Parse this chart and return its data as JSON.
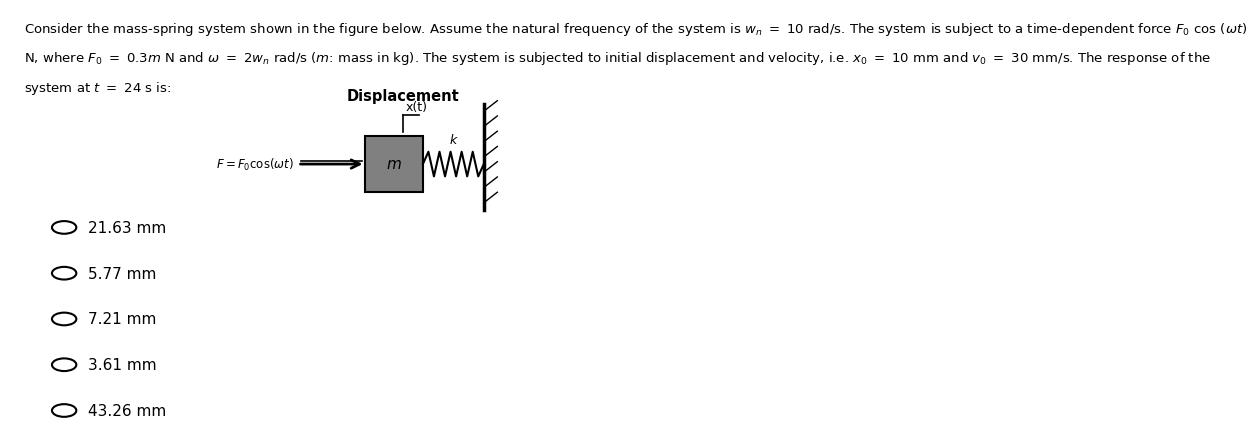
{
  "title_text": "Consider the mass-spring system shown in the figure below. Assume the natural frequency of the system is $w_n = 10$ rad/s. The system is subject to a time-dependent force $F_0$ cos ($wt$)\nN, where $F_0 = 0.3m$ N and $w = 2w_n$ rad/s ($m$: mass in kg). The system is subjected to initial displacement and velocity, i.e. $x_0 = 10$ mm and $v_0 = 30$ mm/s. The response of the\nsystem at $t = 24$ s is:",
  "diagram_label": "Displacement",
  "x_t_label": "x(t)",
  "force_label": "$F = F_0\\cos(\\omega t)$",
  "mass_label": "m",
  "spring_label": "k",
  "options": [
    "21.63 mm",
    "5.77 mm",
    "7.21 mm",
    "3.61 mm",
    "43.26 mm"
  ],
  "bg_color": "#ffffff",
  "text_color": "#000000",
  "box_color": "#808080",
  "font_size_text": 9.5,
  "font_size_options": 11
}
